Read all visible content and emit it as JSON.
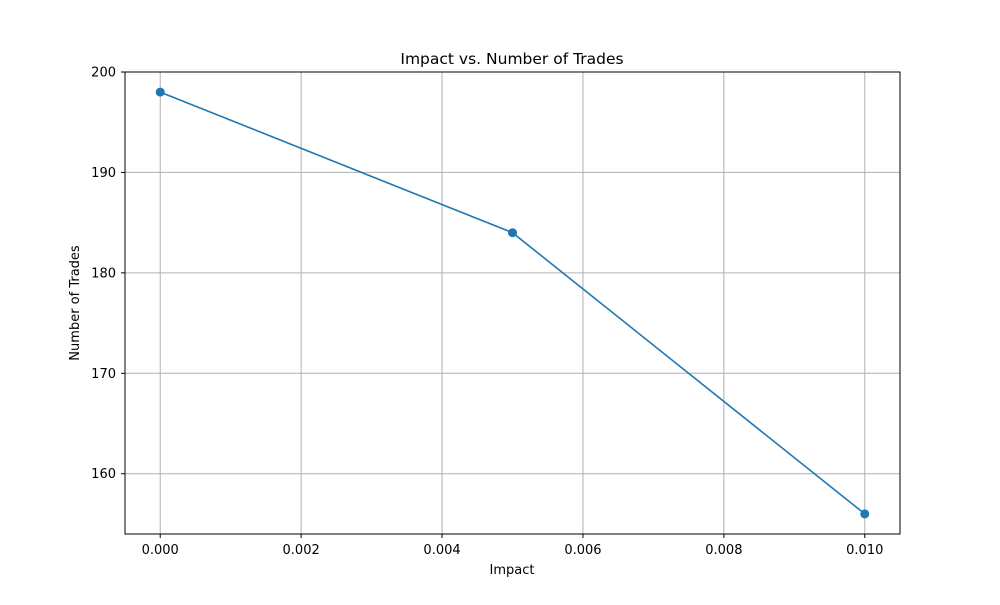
{
  "chart_data": {
    "type": "line",
    "title": "Impact vs. Number of Trades",
    "xlabel": "Impact",
    "ylabel": "Number of Trades",
    "xlim": [
      -0.0005,
      0.0105
    ],
    "ylim": [
      154,
      200
    ],
    "xticks": [
      0.0,
      0.002,
      0.004,
      0.006,
      0.008,
      0.01
    ],
    "xtick_labels": [
      "0.000",
      "0.002",
      "0.004",
      "0.006",
      "0.008",
      "0.010"
    ],
    "yticks": [
      160,
      170,
      180,
      190,
      200
    ],
    "ytick_labels": [
      "160",
      "170",
      "180",
      "190",
      "200"
    ],
    "grid": true,
    "legend": "none",
    "series": [
      {
        "color": "#1f77b4",
        "marker": "circle",
        "x": [
          0.0,
          0.005,
          0.01
        ],
        "y": [
          198,
          184,
          156
        ]
      }
    ]
  }
}
